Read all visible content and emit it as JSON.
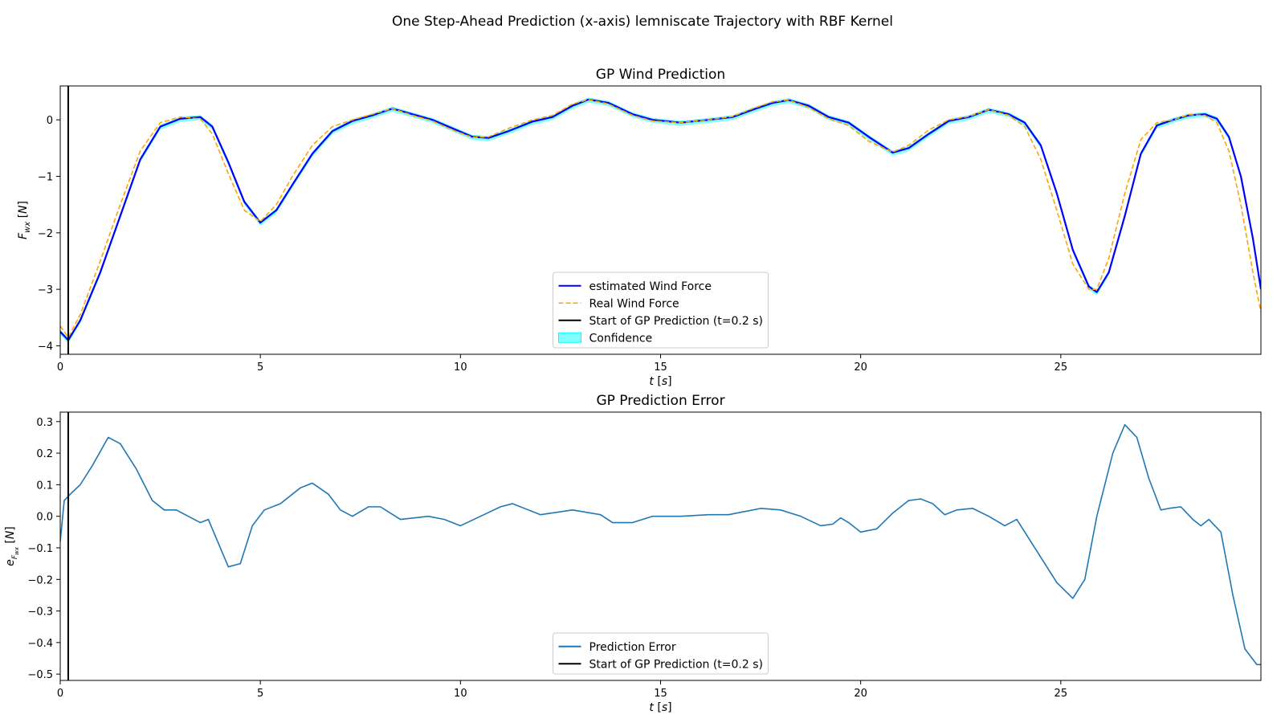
{
  "figure": {
    "suptitle": "One Step-Ahead Prediction (x-axis) lemniscate Trajectory with RBF Kernel"
  },
  "colors": {
    "estimated": "#0000ff",
    "real": "#ffa500",
    "confidence": "#00ffff",
    "error": "#1f77b4",
    "start_line": "#000000"
  },
  "chart_data": [
    {
      "type": "line",
      "title": "GP Wind Prediction",
      "xlabel": "t [s]",
      "ylabel": "F_wx [N]",
      "xlim": [
        0,
        30
      ],
      "ylim": [
        -4.15,
        0.6
      ],
      "xticks": [
        0,
        5,
        10,
        15,
        20,
        25
      ],
      "yticks": [
        -4,
        -3,
        -2,
        -1,
        0
      ],
      "vline_x": 0.2,
      "legend_position": "lower center",
      "series": [
        {
          "name": "estimated Wind Force",
          "style": "solid",
          "x": [
            0.0,
            0.2,
            0.5,
            1.0,
            1.5,
            2.0,
            2.5,
            3.0,
            3.5,
            3.8,
            4.2,
            4.6,
            5.0,
            5.4,
            5.8,
            6.3,
            6.8,
            7.3,
            7.8,
            8.3,
            8.8,
            9.3,
            9.8,
            10.3,
            10.7,
            11.2,
            11.8,
            12.3,
            12.8,
            13.2,
            13.7,
            14.3,
            14.8,
            15.5,
            16.2,
            16.8,
            17.3,
            17.8,
            18.2,
            18.7,
            19.2,
            19.7,
            20.2,
            20.8,
            21.2,
            21.7,
            22.2,
            22.7,
            23.2,
            23.7,
            24.1,
            24.5,
            24.9,
            25.3,
            25.7,
            25.9,
            26.2,
            26.6,
            27.0,
            27.4,
            27.8,
            28.2,
            28.6,
            28.9,
            29.2,
            29.5,
            29.8,
            30.0
          ],
          "y": [
            -3.75,
            -3.9,
            -3.55,
            -2.7,
            -1.7,
            -0.7,
            -0.12,
            0.02,
            0.05,
            -0.12,
            -0.75,
            -1.45,
            -1.82,
            -1.6,
            -1.15,
            -0.6,
            -0.2,
            -0.02,
            0.08,
            0.2,
            0.1,
            0.0,
            -0.15,
            -0.3,
            -0.32,
            -0.2,
            -0.03,
            0.05,
            0.25,
            0.36,
            0.3,
            0.1,
            0.0,
            -0.05,
            0.0,
            0.05,
            0.18,
            0.3,
            0.35,
            0.25,
            0.05,
            -0.05,
            -0.3,
            -0.58,
            -0.5,
            -0.25,
            -0.02,
            0.05,
            0.18,
            0.1,
            -0.05,
            -0.45,
            -1.3,
            -2.3,
            -2.95,
            -3.05,
            -2.7,
            -1.7,
            -0.6,
            -0.1,
            0.0,
            0.08,
            0.1,
            0.02,
            -0.3,
            -1.0,
            -2.1,
            -3.0
          ]
        },
        {
          "name": "Real Wind Force",
          "style": "dashed",
          "x": [
            0.0,
            0.2,
            0.5,
            1.0,
            1.5,
            2.0,
            2.5,
            3.0,
            3.5,
            3.8,
            4.2,
            4.6,
            5.0,
            5.4,
            5.8,
            6.3,
            6.8,
            7.3,
            7.8,
            8.3,
            8.8,
            9.3,
            9.8,
            10.3,
            10.7,
            11.2,
            11.8,
            12.3,
            12.8,
            13.2,
            13.7,
            14.3,
            14.8,
            15.5,
            16.2,
            16.8,
            17.3,
            17.8,
            18.2,
            18.7,
            19.2,
            19.7,
            20.2,
            20.8,
            21.2,
            21.7,
            22.2,
            22.7,
            23.2,
            23.7,
            24.1,
            24.5,
            24.9,
            25.3,
            25.7,
            25.9,
            26.2,
            26.6,
            27.0,
            27.4,
            27.8,
            28.2,
            28.6,
            28.9,
            29.2,
            29.5,
            29.8,
            30.0
          ],
          "y": [
            -3.65,
            -3.85,
            -3.45,
            -2.5,
            -1.5,
            -0.55,
            -0.05,
            0.05,
            0.02,
            -0.25,
            -0.95,
            -1.6,
            -1.8,
            -1.5,
            -1.0,
            -0.45,
            -0.12,
            0.0,
            0.1,
            0.2,
            0.08,
            -0.02,
            -0.18,
            -0.31,
            -0.3,
            -0.15,
            0.0,
            0.08,
            0.28,
            0.36,
            0.28,
            0.08,
            -0.02,
            -0.05,
            0.0,
            0.06,
            0.2,
            0.32,
            0.35,
            0.22,
            0.02,
            -0.1,
            -0.38,
            -0.57,
            -0.45,
            -0.18,
            0.0,
            0.06,
            0.18,
            0.08,
            -0.12,
            -0.7,
            -1.6,
            -2.55,
            -3.0,
            -3.0,
            -2.45,
            -1.3,
            -0.35,
            -0.05,
            0.0,
            0.09,
            0.08,
            -0.05,
            -0.55,
            -1.5,
            -2.7,
            -3.4
          ]
        }
      ],
      "legend": [
        {
          "label": "estimated Wind Force",
          "kind": "solid-line",
          "color": "#0000ff"
        },
        {
          "label": "Real Wind Force",
          "kind": "dashed-line",
          "color": "#ffa500"
        },
        {
          "label": "Start of GP Prediction (t=0.2 s)",
          "kind": "solid-line",
          "color": "#000000"
        },
        {
          "label": "Confidence",
          "kind": "patch",
          "color": "#00ffff"
        }
      ]
    },
    {
      "type": "line",
      "title": "GP Prediction Error",
      "xlabel": "t [s]",
      "ylabel": "e_Fwx [N]",
      "xlim": [
        0,
        30
      ],
      "ylim": [
        -0.52,
        0.33
      ],
      "xticks": [
        0,
        5,
        10,
        15,
        20,
        25
      ],
      "yticks": [
        0.3,
        0.2,
        0.1,
        0.0,
        -0.1,
        -0.2,
        -0.3,
        -0.4,
        -0.5
      ],
      "ytick_labels": [
        "0.3",
        "0.2",
        "0.1",
        "0.0",
        "−0.1",
        "−0.2",
        "−0.3",
        "−0.4",
        "−0.5"
      ],
      "vline_x": 0.2,
      "legend_position": "lower center",
      "series": [
        {
          "name": "Prediction Error",
          "style": "solid",
          "x": [
            0.0,
            0.1,
            0.25,
            0.5,
            0.8,
            1.2,
            1.5,
            1.9,
            2.3,
            2.6,
            2.9,
            3.2,
            3.5,
            3.7,
            3.9,
            4.2,
            4.5,
            4.8,
            5.1,
            5.5,
            6.0,
            6.3,
            6.7,
            7.0,
            7.3,
            7.7,
            8.0,
            8.5,
            9.2,
            9.6,
            10.0,
            10.5,
            11.0,
            11.3,
            11.7,
            12.0,
            12.8,
            13.5,
            13.8,
            14.3,
            14.8,
            15.5,
            16.2,
            16.7,
            17.5,
            18.0,
            18.5,
            19.0,
            19.3,
            19.5,
            19.7,
            20.0,
            20.4,
            20.8,
            21.2,
            21.5,
            21.8,
            22.1,
            22.4,
            22.8,
            23.2,
            23.6,
            23.9,
            24.2,
            24.6,
            24.9,
            25.3,
            25.6,
            25.9,
            26.3,
            26.6,
            26.9,
            27.2,
            27.5,
            27.7,
            28.0,
            28.3,
            28.5,
            28.7,
            29.0,
            29.3,
            29.6,
            29.9,
            30.0
          ],
          "y": [
            -0.08,
            0.05,
            0.07,
            0.1,
            0.16,
            0.25,
            0.23,
            0.15,
            0.05,
            0.02,
            0.02,
            0.0,
            -0.02,
            -0.01,
            -0.07,
            -0.16,
            -0.15,
            -0.03,
            0.02,
            0.04,
            0.09,
            0.105,
            0.07,
            0.02,
            0.0,
            0.03,
            0.03,
            -0.01,
            0.0,
            -0.01,
            -0.03,
            0.0,
            0.03,
            0.04,
            0.02,
            0.005,
            0.02,
            0.005,
            -0.02,
            -0.02,
            0.0,
            0.0,
            0.005,
            0.005,
            0.025,
            0.02,
            0.0,
            -0.03,
            -0.025,
            -0.005,
            -0.02,
            -0.05,
            -0.04,
            0.01,
            0.05,
            0.055,
            0.04,
            0.005,
            0.02,
            0.025,
            0.0,
            -0.03,
            -0.01,
            -0.07,
            -0.15,
            -0.21,
            -0.26,
            -0.2,
            0.0,
            0.2,
            0.29,
            0.25,
            0.12,
            0.02,
            0.025,
            0.03,
            -0.01,
            -0.03,
            -0.01,
            -0.05,
            -0.25,
            -0.42,
            -0.47,
            -0.47
          ]
        }
      ],
      "legend": [
        {
          "label": "Prediction Error",
          "kind": "solid-line",
          "color": "#1f77b4"
        },
        {
          "label": "Start of GP Prediction (t=0.2 s)",
          "kind": "solid-line",
          "color": "#000000"
        }
      ]
    }
  ]
}
